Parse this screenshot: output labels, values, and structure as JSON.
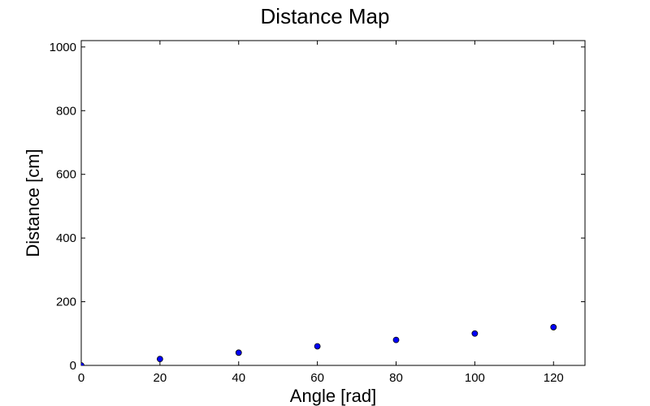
{
  "chart_data": {
    "type": "scatter",
    "title": "Distance Map",
    "xlabel": "Angle [rad]",
    "ylabel": "Distance [cm]",
    "xlim": [
      0,
      128
    ],
    "ylim": [
      0,
      1020
    ],
    "xticks": [
      0,
      20,
      40,
      60,
      80,
      100,
      120
    ],
    "yticks": [
      0,
      200,
      400,
      600,
      800,
      1000
    ],
    "grid": false,
    "marker_color": "#0000ff",
    "points": [
      {
        "x": 0,
        "y": 0
      },
      {
        "x": 20,
        "y": 20
      },
      {
        "x": 40,
        "y": 40
      },
      {
        "x": 60,
        "y": 60
      },
      {
        "x": 80,
        "y": 80
      },
      {
        "x": 100,
        "y": 100
      },
      {
        "x": 120,
        "y": 120
      }
    ]
  }
}
